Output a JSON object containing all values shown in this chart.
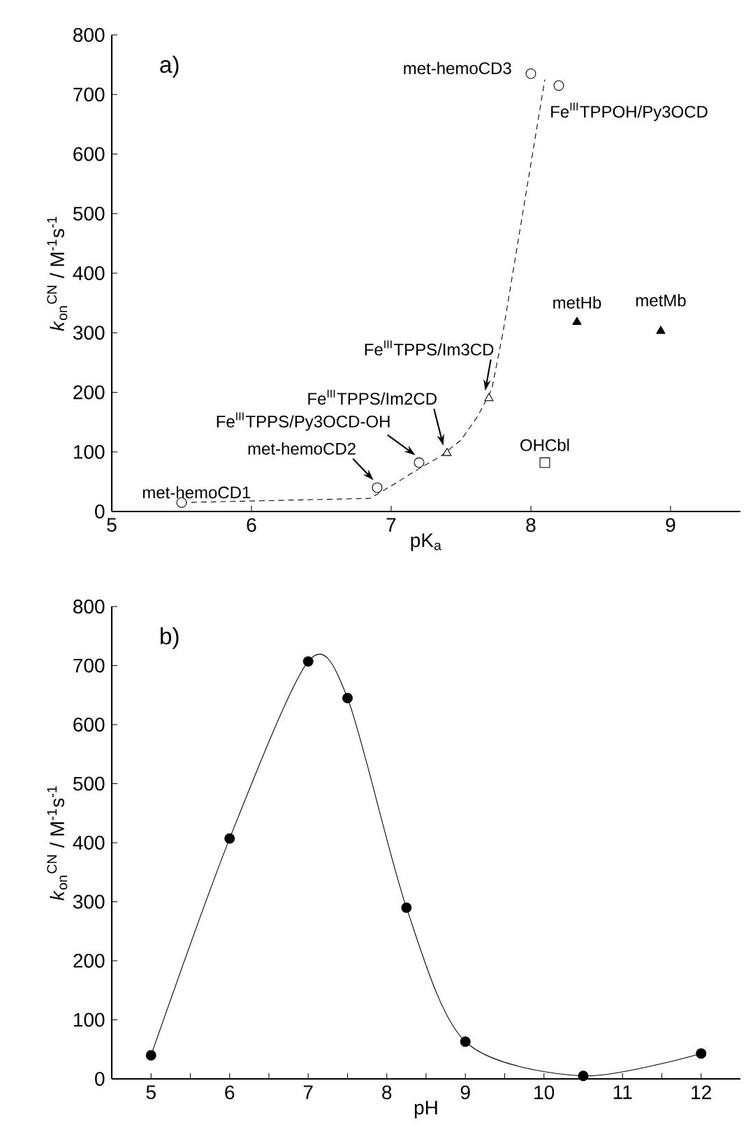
{
  "chart_data": [
    {
      "type": "scatter",
      "title": "a)",
      "xlabel": "pK$_{a}$",
      "ylabel": "*k*$_{on}$$^{CN}$ / M$^{-1}$s$^{-1}$",
      "xlim": [
        5,
        9.5
      ],
      "ylim": [
        0,
        800
      ],
      "xticks": [
        5,
        6,
        7,
        8,
        9
      ],
      "yticks": [
        0,
        100,
        200,
        300,
        400,
        500,
        600,
        700,
        800
      ],
      "series": [
        {
          "type": "line",
          "line_style": "dashed",
          "marker": "none",
          "color": "#000000",
          "x": [
            5.5,
            6.85,
            7.05,
            7.2,
            7.35,
            7.5,
            7.62,
            7.72,
            7.8,
            8.1
          ],
          "values": [
            15,
            22,
            50,
            72,
            92,
            120,
            160,
            205,
            300,
            725
          ]
        },
        {
          "type": "scatter",
          "marker": "circle",
          "color": "#ffffff",
          "x": [
            5.5,
            6.9,
            7.2,
            8.0,
            8.2
          ],
          "values": [
            15,
            40,
            82,
            735,
            715
          ]
        },
        {
          "type": "scatter",
          "marker": "triangle",
          "color": "#ffffff",
          "x": [
            7.4,
            7.7
          ],
          "values": [
            98,
            190
          ]
        },
        {
          "type": "scatter",
          "marker": "triangle",
          "color": "#000000",
          "x": [
            8.33,
            8.93
          ],
          "values": [
            318,
            303
          ]
        },
        {
          "type": "scatter",
          "marker": "square",
          "color": "#ffffff",
          "x": [
            8.1
          ],
          "values": [
            82
          ]
        }
      ],
      "annotations": [
        {
          "text": "met-hemoCD1",
          "x": 5.5,
          "y": 15
        },
        {
          "text": "met-hemoCD2",
          "x": 6.9,
          "y": 40
        },
        {
          "text": "Fe$^{III}$TPPS/Py3OCD-OH",
          "x": 7.2,
          "y": 82
        },
        {
          "text": "Fe$^{III}$TPPS/Im2CD",
          "x": 7.4,
          "y": 98
        },
        {
          "text": "Fe$^{III}$TPPS/Im3CD",
          "x": 7.7,
          "y": 190
        },
        {
          "text": "met-hemoCD3",
          "x": 8.0,
          "y": 735
        },
        {
          "text": "Fe$^{III}$TPPOH/Py3OCD",
          "x": 8.2,
          "y": 715
        },
        {
          "text": "metHb",
          "x": 8.33,
          "y": 318
        },
        {
          "text": "metMb",
          "x": 8.93,
          "y": 303
        },
        {
          "text": "OHCbl",
          "x": 8.1,
          "y": 82
        }
      ]
    },
    {
      "type": "line",
      "title": "b)",
      "xlabel": "pH",
      "ylabel": "*k*$_{on}$$^{CN}$ / M$^{-1}$s$^{-1}$",
      "xlim": [
        4.5,
        12.5
      ],
      "ylim": [
        0,
        800
      ],
      "xticks": [
        5,
        {
          "value": 5.5,
          "label": null
        },
        6,
        {
          "value": 6.5,
          "label": null
        },
        7,
        {
          "value": 7.5,
          "label": null
        },
        8,
        {
          "value": 8.5,
          "label": null
        },
        9,
        {
          "value": 9.5,
          "label": null
        },
        10,
        {
          "value": 10.5,
          "label": null
        },
        11,
        {
          "value": 11.5,
          "label": null
        },
        12
      ],
      "yticks": [
        0,
        100,
        200,
        300,
        400,
        500,
        600,
        700,
        800
      ],
      "marker": "circle",
      "line_style": "solid",
      "series": [
        {
          "color": "#000000",
          "x": [
            5,
            6,
            7,
            7.5,
            8.25,
            9,
            10.5,
            12
          ],
          "values": [
            40,
            407,
            707,
            645,
            290,
            63,
            5,
            43
          ]
        }
      ]
    }
  ]
}
